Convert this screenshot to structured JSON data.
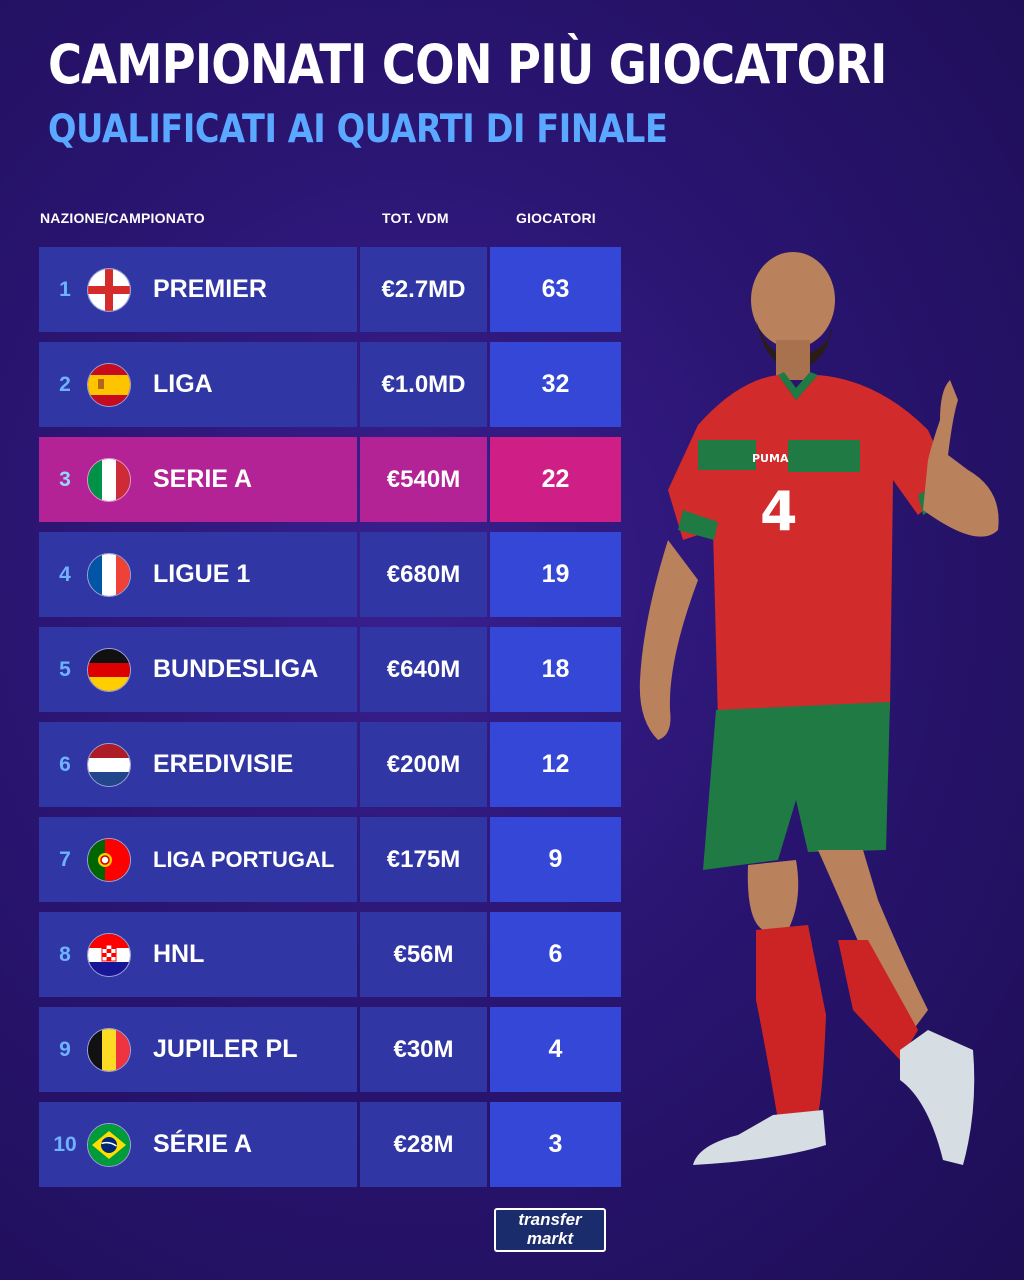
{
  "header": {
    "title": "CAMPIONATI CON PIÙ GIOCATORI",
    "subtitle": "QUALIFICATI AI QUARTI DI FINALE"
  },
  "columns": {
    "nation": "NAZIONE/CAMPIONATO",
    "value": "TOT. VDM",
    "players": "GIOCATORI"
  },
  "rows": [
    {
      "rank": "1",
      "flag": "england-flag-icon",
      "league": "PREMIER",
      "value": "€2.7MD",
      "players": "63"
    },
    {
      "rank": "2",
      "flag": "spain-flag-icon",
      "league": "LIGA",
      "value": "€1.0MD",
      "players": "32"
    },
    {
      "rank": "3",
      "flag": "italy-flag-icon",
      "league": "SERIE A",
      "value": "€540M",
      "players": "22"
    },
    {
      "rank": "4",
      "flag": "france-flag-icon",
      "league": "LIGUE 1",
      "value": "€680M",
      "players": "19"
    },
    {
      "rank": "5",
      "flag": "germany-flag-icon",
      "league": "BUNDESLIGA",
      "value": "€640M",
      "players": "18"
    },
    {
      "rank": "6",
      "flag": "netherlands-flag-icon",
      "league": "EREDIVISIE",
      "value": "€200M",
      "players": "12"
    },
    {
      "rank": "7",
      "flag": "portugal-flag-icon",
      "league": "LIGA PORTUGAL",
      "value": "€175M",
      "players": "9"
    },
    {
      "rank": "8",
      "flag": "croatia-flag-icon",
      "league": "HNL",
      "value": "€56M",
      "players": "6"
    },
    {
      "rank": "9",
      "flag": "belgium-flag-icon",
      "league": "JUPILER PL",
      "value": "€30M",
      "players": "4"
    },
    {
      "rank": "10",
      "flag": "brazil-flag-icon",
      "league": "SÉRIE A",
      "value": "€28M",
      "players": "3"
    }
  ],
  "highlight_color": "#cf1f86",
  "logo": {
    "line1": "transfer",
    "line2": "markt"
  },
  "player": {
    "shirt_number": "4",
    "kit_brand": "PUMA"
  }
}
